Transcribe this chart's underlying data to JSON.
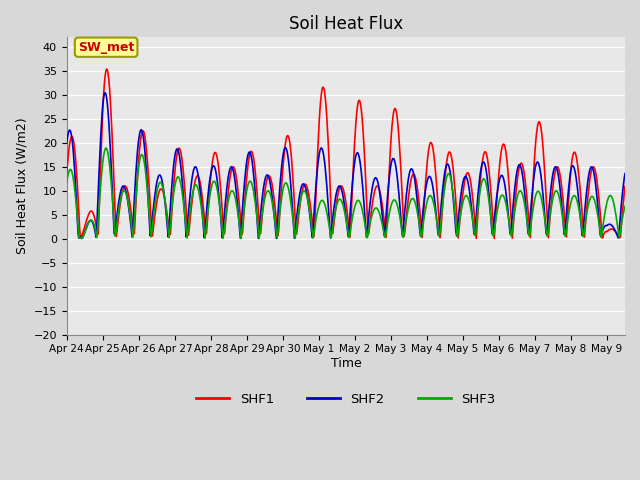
{
  "title": "Soil Heat Flux",
  "xlabel": "Time",
  "ylabel": "Soil Heat Flux (W/m2)",
  "ylim": [
    -20,
    42
  ],
  "yticks": [
    -20,
    -15,
    -10,
    -5,
    0,
    5,
    10,
    15,
    20,
    25,
    30,
    35,
    40
  ],
  "line_colors": {
    "SHF1": "#ff0000",
    "SHF2": "#0000cc",
    "SHF3": "#00aa00"
  },
  "line_width": 1.2,
  "fig_bg_color": "#d8d8d8",
  "plot_bg_color": "#e8e8e8",
  "annotation_text": "SW_met",
  "annotation_facecolor": "#ffff99",
  "annotation_edgecolor": "#999900",
  "annotation_textcolor": "#cc0000",
  "tick_labels": [
    "Apr 24",
    "Apr 25",
    "Apr 26",
    "Apr 27",
    "Apr 28",
    "Apr 29",
    "Apr 30",
    "May 1",
    "May 2",
    "May 3",
    "May 4",
    "May 5",
    "May 6",
    "May 7",
    "May 8",
    "May 9"
  ],
  "tick_positions": [
    0,
    1,
    2,
    3,
    4,
    5,
    6,
    7,
    8,
    9,
    10,
    11,
    12,
    13,
    14,
    15
  ],
  "xlim": [
    0,
    15.5
  ],
  "n_points": 744
}
